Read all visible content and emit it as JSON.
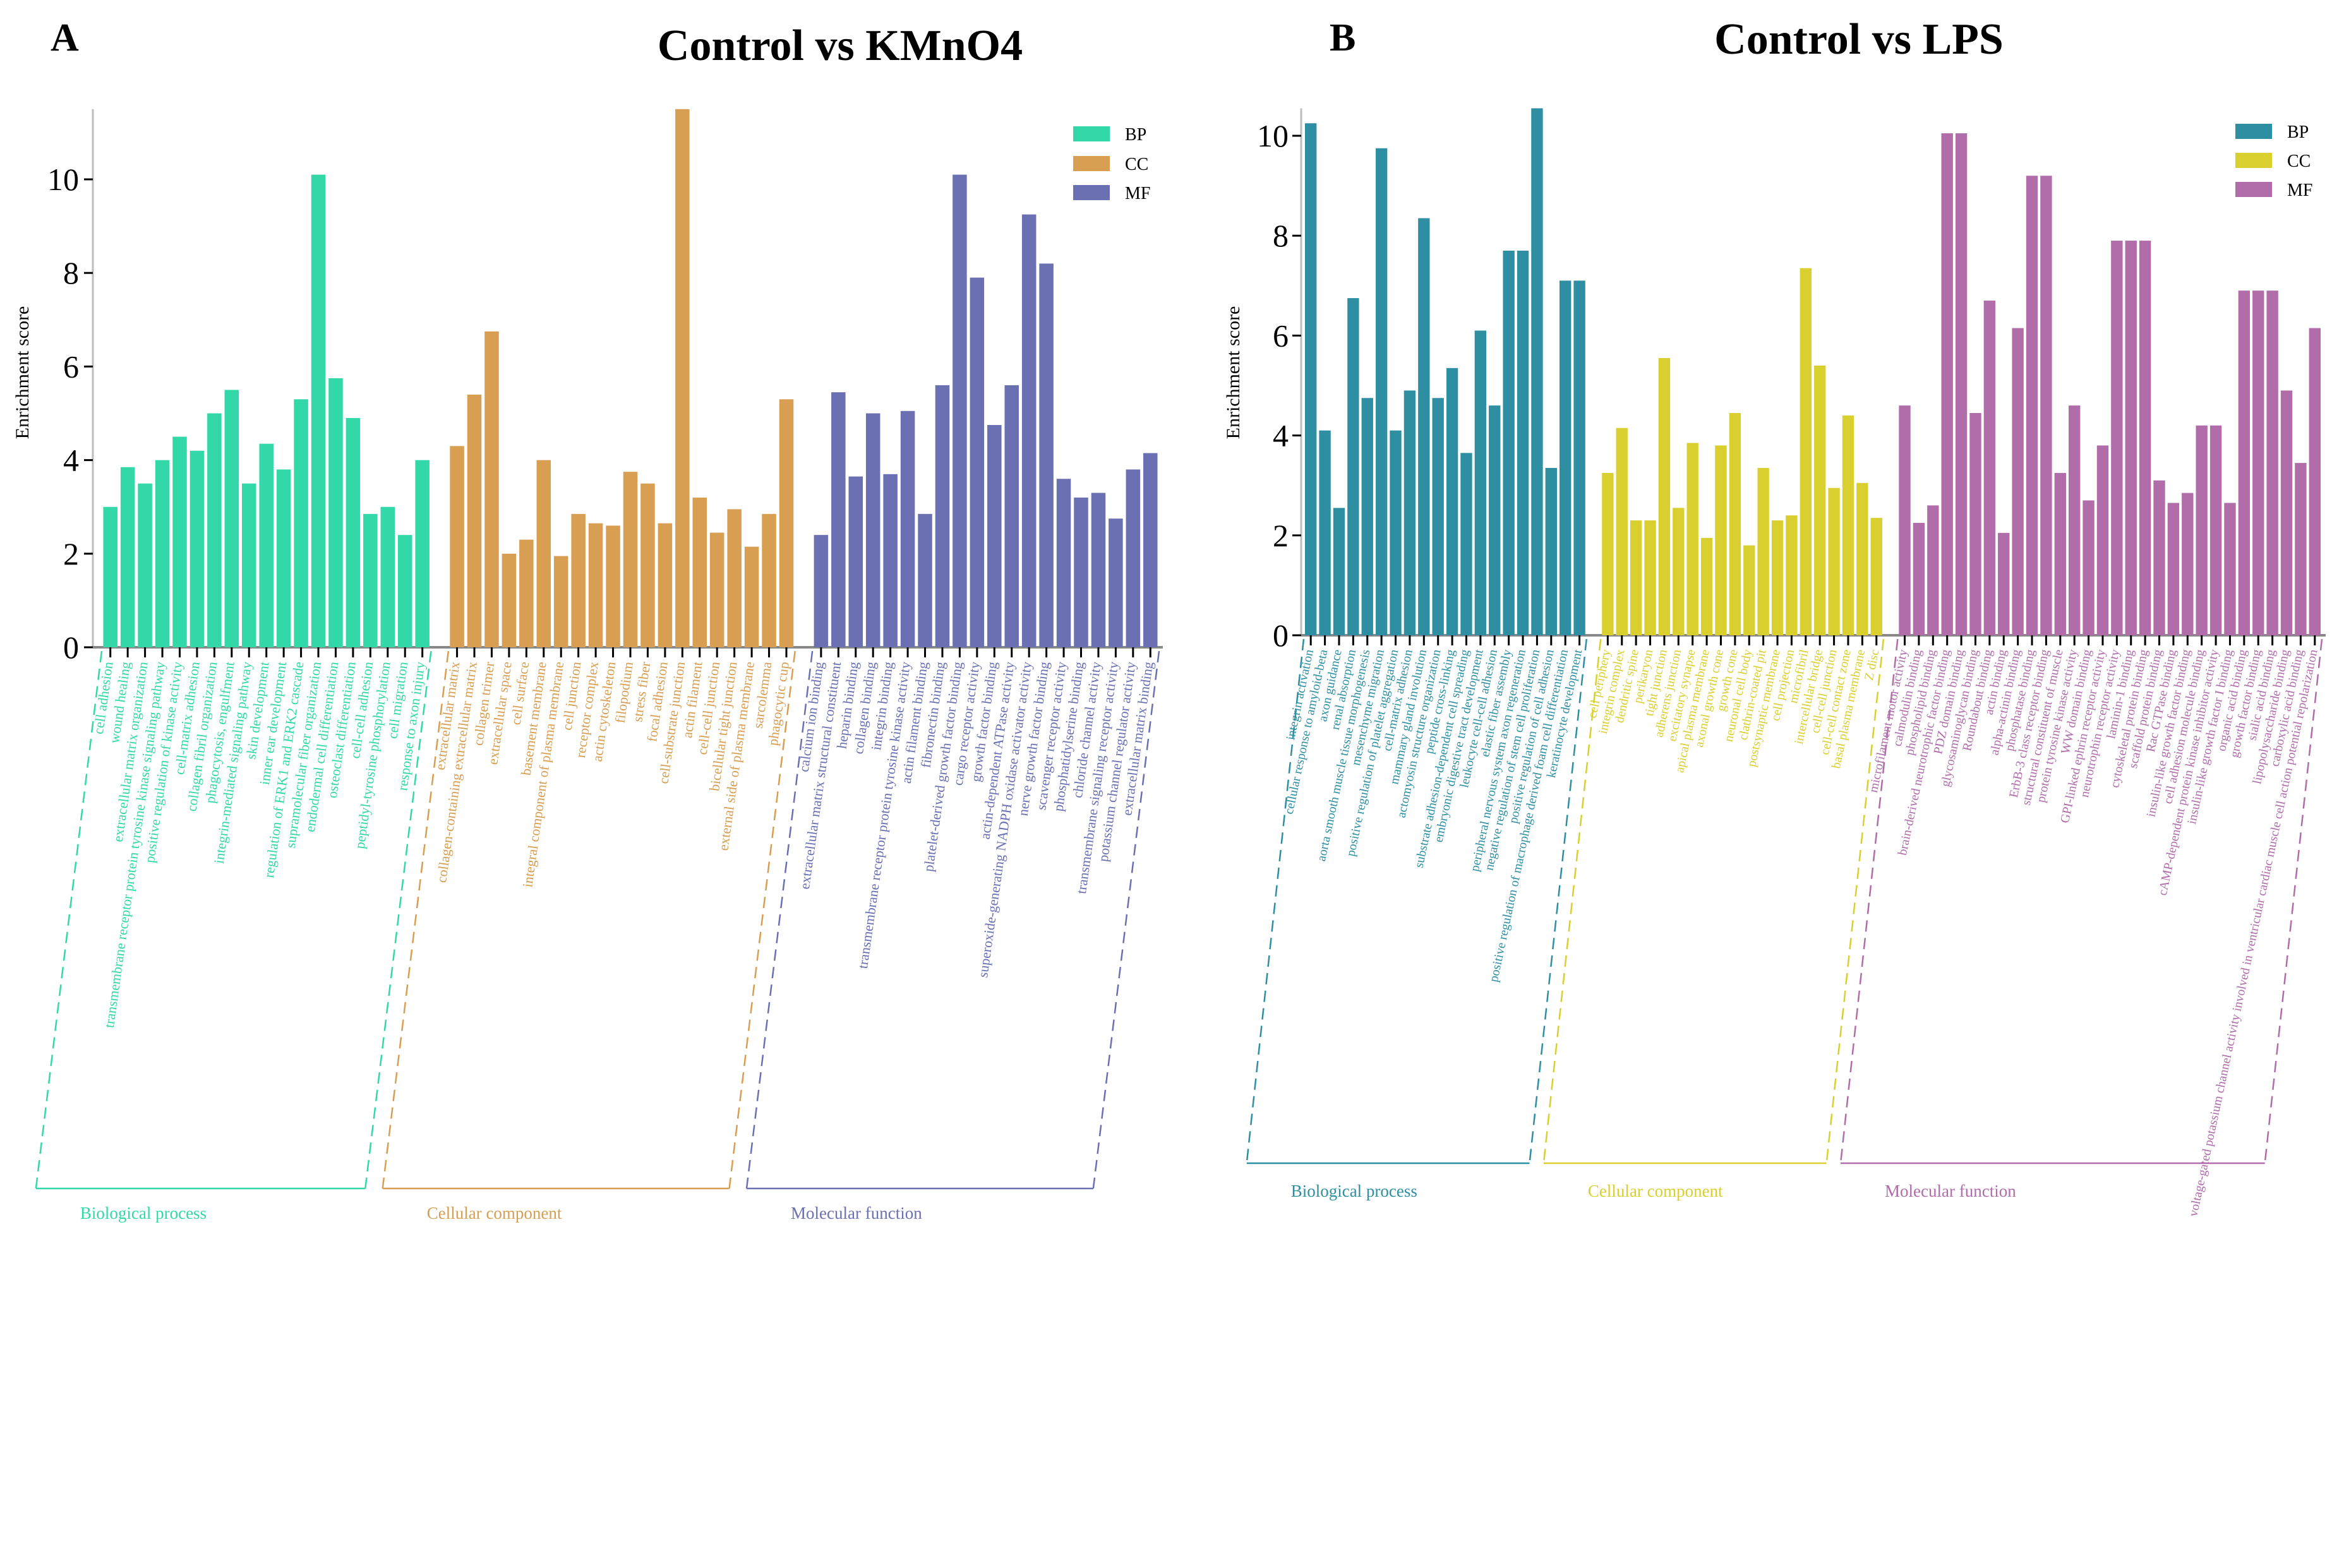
{
  "chart_data": [
    {
      "type": "bar",
      "panel_letter": "A",
      "title": "Control vs KMnO4",
      "ylabel": "Enrichment score",
      "ylim": [
        0,
        11.5
      ],
      "yticks": [
        0,
        2,
        4,
        6,
        8,
        10
      ],
      "grid": false,
      "legend_placement": "top-right",
      "legend": [
        {
          "name": "BP",
          "color": "#33D8A8"
        },
        {
          "name": "CC",
          "color": "#D89E52"
        },
        {
          "name": "MF",
          "color": "#6B70B3"
        }
      ],
      "groups": [
        {
          "key": "BP",
          "name": "Biological process",
          "color": "#33D8A8",
          "categories": [
            "cell adhesion",
            "wound healing",
            "extracellular matrix organization",
            "transmembrane receptor protein tyrosine kinase signaling pathway",
            "positive regulation of kinase activity",
            "cell-matrix adhesion",
            "collagen fibril organization",
            "phagocytosis, engulfment",
            "integrin-mediated signaling pathway",
            "skin development",
            "inner ear development",
            "regulation of ERK1 and ERK2 cascade",
            "supramolecular fiber organization",
            "endodermal cell differentiation",
            "osteoclast differentiation",
            "cell-cell adhesion",
            "peptidyl-tyrosine phosphorylation",
            "cell migration",
            "response to axon injury"
          ],
          "values": [
            3.0,
            3.85,
            3.5,
            4.0,
            4.5,
            4.2,
            5.0,
            5.5,
            3.5,
            4.35,
            3.8,
            5.3,
            10.1,
            5.75,
            4.9,
            2.85,
            3.0,
            2.4,
            4.0
          ]
        },
        {
          "key": "CC",
          "name": "Cellular component",
          "color": "#D89E52",
          "categories": [
            "extracellular matrix",
            "collagen-containing extracellular matrix",
            "collagen trimer",
            "extracellular space",
            "cell surface",
            "basement membrane",
            "integral component of plasma membrane",
            "cell junction",
            "receptor complex",
            "actin cytoskeleton",
            "filopodium",
            "stress fiber",
            "focal adhesion",
            "cell-substrate junction",
            "actin filament",
            "cell-cell junction",
            "bicellular tight junction",
            "external side of plasma membrane",
            "sarcolemma",
            "phagocytic cup"
          ],
          "values": [
            4.3,
            5.4,
            6.75,
            2.0,
            2.3,
            4.0,
            1.95,
            2.85,
            2.65,
            2.6,
            3.75,
            3.5,
            2.65,
            11.5,
            3.2,
            2.45,
            2.95,
            2.15,
            2.85,
            5.3
          ]
        },
        {
          "key": "MF",
          "name": "Molecular function",
          "color": "#6B70B3",
          "categories": [
            "calcium ion binding",
            "extracellular matrix structural constituent",
            "heparin binding",
            "collagen binding",
            "integrin binding",
            "transmembrane receptor protein tyrosine kinase activity",
            "actin filament binding",
            "fibronectin binding",
            "platelet-derived growth factor binding",
            "cargo receptor activity",
            "growth factor binding",
            "actin-dependent ATPase activity",
            "superoxide-generating NADPH oxidase activator activity",
            "nerve growth factor binding",
            "scavenger receptor activity",
            "phosphatidylserine binding",
            "chloride channel activity",
            "transmembrane signaling receptor activity",
            "potassium channel regulator activity",
            "extracellular matrix binding"
          ],
          "values": [
            2.4,
            5.45,
            3.65,
            5.0,
            3.7,
            5.05,
            2.85,
            5.6,
            10.1,
            7.9,
            4.75,
            5.6,
            9.25,
            8.2,
            3.6,
            3.2,
            3.3,
            2.75,
            3.8,
            4.15
          ]
        }
      ]
    },
    {
      "type": "bar",
      "panel_letter": "B",
      "title": "Control vs LPS",
      "ylabel": "Enrichment score",
      "ylim": [
        0,
        10.55
      ],
      "yticks": [
        0,
        2,
        4,
        6,
        8,
        10
      ],
      "grid": false,
      "legend_placement": "top-right",
      "legend": [
        {
          "name": "BP",
          "color": "#2E8FA2"
        },
        {
          "name": "CC",
          "color": "#D9CF2F"
        },
        {
          "name": "MF",
          "color": "#B06DAA"
        }
      ],
      "groups": [
        {
          "key": "BP",
          "name": "Biological process",
          "color": "#2E8FA2",
          "categories": [
            "integrin activation",
            "cellular response to amyloid-beta",
            "axon guidance",
            "renal absorption",
            "aorta smooth muscle tissue morphogenesis",
            "mesenchyme migration",
            "positive regulation of platelet aggregation",
            "cell-matrix adhesion",
            "mammary gland involution",
            "actomyosin structure organization",
            "peptide cross-linking",
            "substrate adhesion-dependent cell spreading",
            "embryonic digestive tract development",
            "leukocyte cell-cell adhesion",
            "elastic fiber assembly",
            "peripheral nervous system axon regeneration",
            "negative regulation of stem cell proliferation",
            "positive regulation of cell adhesion",
            "positive regulation of macrophage derived foam cell differentiation",
            "keratinocyte development"
          ],
          "values": [
            10.25,
            4.1,
            2.55,
            6.75,
            4.75,
            9.75,
            4.1,
            4.9,
            8.35,
            4.75,
            5.35,
            3.65,
            6.1,
            4.6,
            7.7,
            7.7,
            10.55,
            3.35,
            7.1,
            7.1
          ]
        },
        {
          "key": "CC",
          "name": "Cellular component",
          "color": "#D9CF2F",
          "categories": [
            "cell periphery",
            "integrin complex",
            "dendritic spine",
            "perikaryon",
            "tight junction",
            "adherens junction",
            "excitatory synapse",
            "apical plasma membrane",
            "axonal growth cone",
            "growth cone",
            "neuronal cell body",
            "clathrin-coated pit",
            "postsynaptic membrane",
            "cell projection",
            "microfibril",
            "intercellular bridge",
            "cell-cell junction",
            "cell-cell contact zone",
            "basal plasma membrane",
            "Z disc"
          ],
          "values": [
            3.25,
            4.15,
            2.3,
            2.3,
            5.55,
            2.55,
            3.85,
            1.95,
            3.8,
            4.45,
            1.8,
            3.35,
            2.3,
            2.4,
            7.35,
            5.4,
            2.95,
            4.4,
            3.05,
            2.35
          ]
        },
        {
          "key": "MF",
          "name": "Molecular function",
          "color": "#B06DAA",
          "categories": [
            "microfilament motor activity",
            "calmodulin binding",
            "phospholipid binding",
            "brain-derived neurotrophic factor binding",
            "PDZ domain binding",
            "glycosaminoglycan binding",
            "Roundabout binding",
            "actin binding",
            "alpha-actinin binding",
            "phosphatase binding",
            "ErbB-3 class receptor binding",
            "structural constituent of muscle",
            "protein tyrosine kinase activity",
            "WW domain binding",
            "GPI-linked ephrin receptor activity",
            "neurotrophin receptor activity",
            "laminin-1 binding",
            "cytoskeletal protein binding",
            "scaffold protein binding",
            "Rac GTPase binding",
            "insulin-like growth factor binding",
            "cell adhesion molecule binding",
            "cAMP-dependent protein kinase inhibitor activity",
            "insulin-like growth factor I binding",
            "organic acid binding",
            "growth factor binding",
            "sialic acid binding",
            "lipopolysaccharide binding",
            "carboxylic acid binding",
            "voltage-gated potassium channel activity involved in ventricular cardiac muscle cell action potential repolarization"
          ],
          "values": [
            4.6,
            2.25,
            2.6,
            10.05,
            10.05,
            4.45,
            6.7,
            2.05,
            6.15,
            9.2,
            9.2,
            3.25,
            4.6,
            2.7,
            3.8,
            7.9,
            7.9,
            7.9,
            3.1,
            2.65,
            2.85,
            4.2,
            4.2,
            2.65,
            6.9,
            6.9,
            6.9,
            4.9,
            3.45,
            6.15
          ]
        }
      ]
    }
  ]
}
